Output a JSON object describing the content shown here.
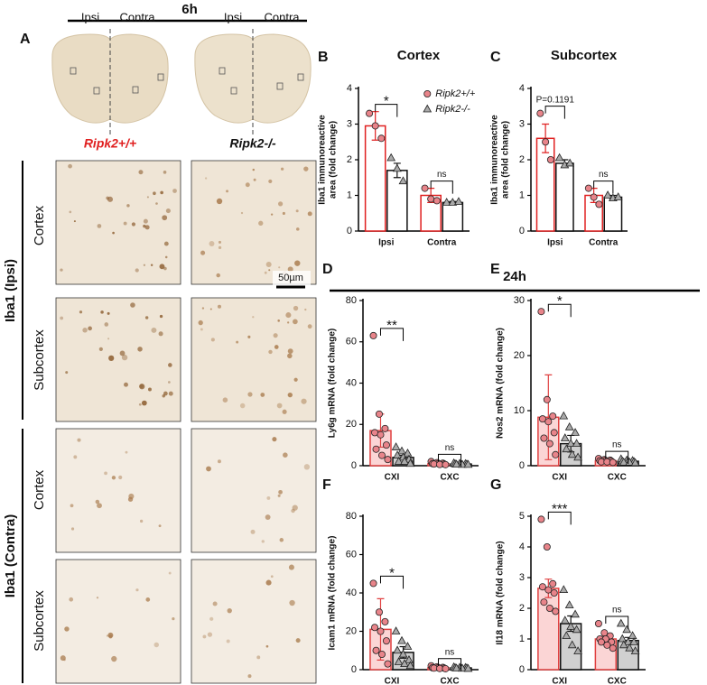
{
  "headers": [
    "6h",
    "24h"
  ],
  "panel_a": {
    "label": "A",
    "brain_labels": [
      "Ipsi",
      "Contra",
      "Ipsi",
      "Contra"
    ],
    "genotypes": [
      "Ripk2+/+",
      "Ripk2-/-"
    ],
    "region_labels": [
      "Cortex",
      "Subcortex",
      "Cortex",
      "Subcortex"
    ],
    "group_labels": [
      "Iba1 (Ipsi)",
      "Iba1 (Contra)"
    ],
    "scale_bar": "50µm"
  },
  "chart_data": [
    {
      "type": "bar",
      "panel": "B",
      "title": "Cortex",
      "y_label": [
        "Iba1 immunoreactive",
        "area (fold change)"
      ],
      "categories": [
        "Ipsi",
        "Contra"
      ],
      "ylim": [
        0,
        4
      ],
      "yticks": [
        0,
        1,
        2,
        3,
        4
      ],
      "legend": "upper right",
      "annotations": [
        "*",
        "ns"
      ],
      "series": [
        {
          "name": "Ripk2+/+",
          "color": "#e02020",
          "fill": "#ffffff",
          "point_color": "#e8848a",
          "marker": "circle",
          "values": [
            2.95,
            1.0
          ],
          "errors": [
            0.4,
            0.2
          ],
          "points": [
            [
              3.3,
              2.95,
              2.6
            ],
            [
              1.2,
              0.9,
              0.85
            ]
          ]
        },
        {
          "name": "Ripk2-/-",
          "color": "#111111",
          "fill": "#ffffff",
          "point_color": "#aaaaaa",
          "marker": "triangle",
          "values": [
            1.7,
            0.8
          ],
          "errors": [
            0.2,
            0.03
          ],
          "points": [
            [
              2.05,
              1.75,
              1.4
            ],
            [
              0.8,
              0.8,
              0.82
            ]
          ]
        }
      ]
    },
    {
      "type": "bar",
      "panel": "C",
      "title": "Subcortex",
      "y_label": [
        "Iba1 immunoreactive",
        "area (fold change)"
      ],
      "categories": [
        "Ipsi",
        "Contra"
      ],
      "ylim": [
        0,
        4
      ],
      "yticks": [
        0,
        1,
        2,
        3,
        4
      ],
      "annotations": [
        "P=0.1191",
        "ns"
      ],
      "series": [
        {
          "color": "#e02020",
          "fill": "#ffffff",
          "point_color": "#e8848a",
          "marker": "circle",
          "values": [
            2.6,
            1.0
          ],
          "errors": [
            0.4,
            0.2
          ],
          "points": [
            [
              3.3,
              2.5,
              2.0
            ],
            [
              1.2,
              0.95,
              0.75
            ]
          ]
        },
        {
          "color": "#111111",
          "fill": "#ffffff",
          "point_color": "#aaaaaa",
          "marker": "triangle",
          "values": [
            1.9,
            0.95
          ],
          "errors": [
            0.1,
            0.05
          ],
          "points": [
            [
              2.05,
              1.85,
              1.9
            ],
            [
              1.0,
              0.92,
              0.95
            ]
          ]
        }
      ]
    },
    {
      "type": "bar",
      "panel": "D",
      "y_label": [
        "Ly6g mRNA (fold change)"
      ],
      "categories": [
        "CXI",
        "CXC"
      ],
      "ylim": [
        0,
        80
      ],
      "yticks": [
        0,
        20,
        40,
        60,
        80
      ],
      "annotations": [
        "**",
        "ns"
      ],
      "series": [
        {
          "color": "#e04040",
          "fill": "#fbd5d5",
          "point_color": "#e8848a",
          "marker": "circle",
          "values": [
            17,
            1
          ],
          "errors": [
            8,
            0.3
          ],
          "points": [
            [
              63,
              25,
              18,
              16,
              15,
              10,
              8,
              5,
              3
            ],
            [
              2,
              1.5,
              1.2,
              1,
              1,
              0.8,
              0.8,
              0.6,
              0.5
            ]
          ]
        },
        {
          "color": "#111111",
          "fill": "#d0d0d0",
          "point_color": "#aaaaaa",
          "marker": "triangle",
          "values": [
            4,
            0.8
          ],
          "errors": [
            1,
            0.2
          ],
          "points": [
            [
              9,
              7,
              6,
              5,
              4,
              3,
              2,
              2,
              1
            ],
            [
              1.2,
              1,
              0.9,
              0.8,
              0.8,
              0.7,
              0.6,
              0.5,
              0.5
            ]
          ]
        }
      ]
    },
    {
      "type": "bar",
      "panel": "E",
      "y_label": [
        "Nos2 mRNA (fold change)"
      ],
      "categories": [
        "CXI",
        "CXC"
      ],
      "ylim": [
        0,
        30
      ],
      "yticks": [
        0,
        10,
        20,
        30
      ],
      "annotations": [
        "*",
        "ns"
      ],
      "series": [
        {
          "color": "#e04040",
          "fill": "#fbd5d5",
          "point_color": "#e8848a",
          "marker": "circle",
          "values": [
            8.8,
            0.9
          ],
          "errors": [
            7.7,
            0.2
          ],
          "points": [
            [
              28,
              12,
              9,
              8.5,
              8,
              6,
              5,
              4,
              2
            ],
            [
              1.3,
              1.1,
              1,
              0.9,
              0.9,
              0.8,
              0.7,
              0.7,
              0.6
            ]
          ]
        },
        {
          "color": "#111111",
          "fill": "#d0d0d0",
          "point_color": "#aaaaaa",
          "marker": "triangle",
          "values": [
            4,
            0.8
          ],
          "errors": [
            1.5,
            0.2
          ],
          "points": [
            [
              9,
              7,
              6,
              5,
              4,
              4,
              3,
              2,
              1.5
            ],
            [
              1.2,
              1,
              0.9,
              0.8,
              0.8,
              0.7,
              0.6,
              0.6,
              0.5
            ]
          ]
        }
      ]
    },
    {
      "type": "bar",
      "panel": "F",
      "y_label": [
        "Icam1 mRNA (fold change)"
      ],
      "categories": [
        "CXI",
        "CXC"
      ],
      "ylim": [
        0,
        80
      ],
      "yticks": [
        0,
        20,
        40,
        60,
        80
      ],
      "annotations": [
        "*",
        "ns"
      ],
      "series": [
        {
          "color": "#e04040",
          "fill": "#fbd5d5",
          "point_color": "#e8848a",
          "marker": "circle",
          "values": [
            21,
            1
          ],
          "errors": [
            16,
            0.3
          ],
          "points": [
            [
              45,
              30,
              25,
              22,
              20,
              15,
              10,
              8,
              3
            ],
            [
              2,
              1.5,
              1.2,
              1,
              1,
              0.8,
              0.8,
              0.6,
              0.5
            ]
          ]
        },
        {
          "color": "#111111",
          "fill": "#d0d0d0",
          "point_color": "#aaaaaa",
          "marker": "triangle",
          "values": [
            9,
            0.9
          ],
          "errors": [
            3,
            0.2
          ],
          "points": [
            [
              20,
              15,
              12,
              10,
              8,
              5,
              4,
              3,
              2
            ],
            [
              1.3,
              1.1,
              1,
              0.9,
              0.9,
              0.8,
              0.7,
              0.6,
              0.5
            ]
          ]
        }
      ]
    },
    {
      "type": "bar",
      "panel": "G",
      "y_label": [
        "Il18 mRNA (fold change)"
      ],
      "categories": [
        "CXI",
        "CXC"
      ],
      "ylim": [
        0,
        5
      ],
      "yticks": [
        0,
        1,
        2,
        3,
        4,
        5
      ],
      "annotations": [
        "***",
        "ns"
      ],
      "series": [
        {
          "color": "#e04040",
          "fill": "#fbd5d5",
          "point_color": "#e8848a",
          "marker": "circle",
          "values": [
            2.65,
            1.0
          ],
          "errors": [
            0.3,
            0.1
          ],
          "points": [
            [
              4.9,
              4.0,
              2.8,
              2.7,
              2.6,
              2.5,
              2.2,
              2.0,
              1.9
            ],
            [
              1.5,
              1.2,
              1.1,
              1.0,
              1.0,
              0.9,
              0.9,
              0.8,
              0.7
            ]
          ]
        },
        {
          "color": "#111111",
          "fill": "#d0d0d0",
          "point_color": "#aaaaaa",
          "marker": "triangle",
          "values": [
            1.5,
            0.95
          ],
          "errors": [
            0.25,
            0.1
          ],
          "points": [
            [
              2.6,
              2.1,
              1.8,
              1.6,
              1.4,
              1.3,
              1.1,
              0.8,
              0.6
            ],
            [
              1.5,
              1.3,
              1.1,
              1.0,
              0.9,
              0.9,
              0.8,
              0.7,
              0.6
            ]
          ]
        }
      ]
    }
  ]
}
